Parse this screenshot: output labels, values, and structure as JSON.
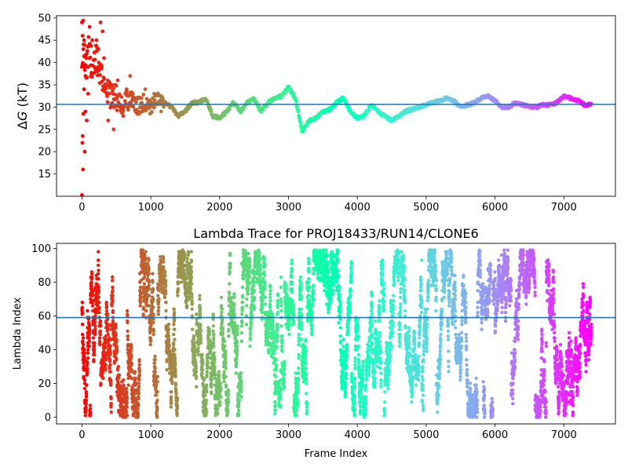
{
  "figure": {
    "background": "#ffffff",
    "refline_color": "#1f77b4",
    "colormap": "rainbow"
  },
  "chart_data": [
    {
      "type": "scatter",
      "title": "",
      "xlabel": "",
      "ylabel_prefix": "Δ",
      "ylabel_var": "G",
      "ylabel_unit": " (kT)",
      "xlim": [
        -370,
        7750
      ],
      "ylim": [
        10,
        50.5
      ],
      "xticks": [
        0,
        1000,
        2000,
        3000,
        4000,
        5000,
        6000,
        7000
      ],
      "yticks": [
        15,
        20,
        25,
        30,
        35,
        40,
        45,
        50
      ],
      "x_range": [
        0,
        7400
      ],
      "color_by": "x (Frame Index), rainbow reversed: red at 0 → violet at 7400",
      "reference_line_y": 30.6,
      "trace_keypoints": [
        [
          0,
          40
        ],
        [
          20,
          46
        ],
        [
          60,
          38
        ],
        [
          100,
          44
        ],
        [
          150,
          40
        ],
        [
          200,
          42
        ],
        [
          300,
          36
        ],
        [
          400,
          33
        ],
        [
          500,
          32
        ],
        [
          600,
          31
        ],
        [
          700,
          32
        ],
        [
          800,
          30
        ],
        [
          900,
          31
        ],
        [
          1000,
          30
        ],
        [
          1100,
          32
        ],
        [
          1200,
          31
        ],
        [
          1300,
          30
        ],
        [
          1400,
          28
        ],
        [
          1500,
          29
        ],
        [
          1600,
          31
        ],
        [
          1700,
          31
        ],
        [
          1800,
          32
        ],
        [
          1900,
          28
        ],
        [
          2000,
          27.5
        ],
        [
          2100,
          29
        ],
        [
          2200,
          31
        ],
        [
          2300,
          29
        ],
        [
          2400,
          31
        ],
        [
          2500,
          32
        ],
        [
          2600,
          29
        ],
        [
          2700,
          31
        ],
        [
          2800,
          32
        ],
        [
          2900,
          32.5
        ],
        [
          3000,
          34.5
        ],
        [
          3100,
          32
        ],
        [
          3200,
          24.5
        ],
        [
          3300,
          27
        ],
        [
          3400,
          27.5
        ],
        [
          3500,
          29
        ],
        [
          3600,
          29.5
        ],
        [
          3700,
          31
        ],
        [
          3800,
          32
        ],
        [
          3900,
          29
        ],
        [
          4000,
          27.5
        ],
        [
          4100,
          28
        ],
        [
          4200,
          30.5
        ],
        [
          4300,
          29
        ],
        [
          4400,
          28
        ],
        [
          4500,
          27
        ],
        [
          4600,
          28
        ],
        [
          4700,
          29
        ],
        [
          4800,
          29.5
        ],
        [
          4900,
          30
        ],
        [
          5000,
          30.5
        ],
        [
          5100,
          31
        ],
        [
          5200,
          31.5
        ],
        [
          5300,
          32
        ],
        [
          5400,
          31.5
        ],
        [
          5500,
          30
        ],
        [
          5600,
          30.5
        ],
        [
          5700,
          31
        ],
        [
          5800,
          32
        ],
        [
          5900,
          32.5
        ],
        [
          6000,
          31.5
        ],
        [
          6100,
          30
        ],
        [
          6200,
          30
        ],
        [
          6300,
          31
        ],
        [
          6400,
          30.5
        ],
        [
          6500,
          30
        ],
        [
          6600,
          30
        ],
        [
          6700,
          30.5
        ],
        [
          6800,
          30.5
        ],
        [
          6900,
          31
        ],
        [
          7000,
          32.5
        ],
        [
          7100,
          32
        ],
        [
          7200,
          31.5
        ],
        [
          7300,
          30.5
        ],
        [
          7400,
          30.5
        ]
      ],
      "early_scatter": [
        [
          0,
          10.3
        ],
        [
          5,
          22
        ],
        [
          10,
          23.5
        ],
        [
          15,
          16
        ],
        [
          20,
          28.5
        ],
        [
          30,
          34
        ],
        [
          40,
          20
        ],
        [
          50,
          29
        ],
        [
          0,
          49
        ],
        [
          10,
          46
        ],
        [
          20,
          43
        ],
        [
          30,
          45
        ],
        [
          40,
          39
        ],
        [
          50,
          37
        ],
        [
          60,
          41
        ],
        [
          70,
          27
        ],
        [
          90,
          33
        ],
        [
          110,
          48
        ],
        [
          130,
          37
        ],
        [
          150,
          45
        ],
        [
          180,
          39
        ],
        [
          210,
          45
        ],
        [
          240,
          43
        ],
        [
          270,
          49
        ],
        [
          300,
          47
        ],
        [
          320,
          41
        ],
        [
          360,
          33
        ],
        [
          380,
          27
        ],
        [
          420,
          30
        ],
        [
          460,
          25
        ],
        [
          480,
          35
        ],
        [
          520,
          36
        ],
        [
          560,
          30
        ],
        [
          600,
          28
        ],
        [
          650,
          34
        ],
        [
          700,
          37
        ],
        [
          740,
          33
        ],
        [
          780,
          29
        ],
        [
          830,
          32
        ],
        [
          870,
          30
        ],
        [
          920,
          34
        ],
        [
          960,
          31
        ],
        [
          1050,
          33
        ],
        [
          1150,
          29
        ]
      ]
    },
    {
      "type": "scatter",
      "title": "Lambda Trace for PROJ18433/RUN14/CLONE6",
      "xlabel": "Frame Index",
      "ylabel": "Lambda Index",
      "xlim": [
        -370,
        7750
      ],
      "ylim": [
        -4,
        103
      ],
      "xticks": [
        0,
        1000,
        2000,
        3000,
        4000,
        5000,
        6000,
        7000
      ],
      "yticks": [
        0,
        20,
        40,
        60,
        80,
        100
      ],
      "x_range": [
        0,
        7400
      ],
      "y_range": [
        0,
        99
      ],
      "color_by": "x (Frame Index), rainbow reversed: red at 0 → violet at 7400",
      "reference_line_y": 59,
      "n_points_approx": 7400
    }
  ]
}
